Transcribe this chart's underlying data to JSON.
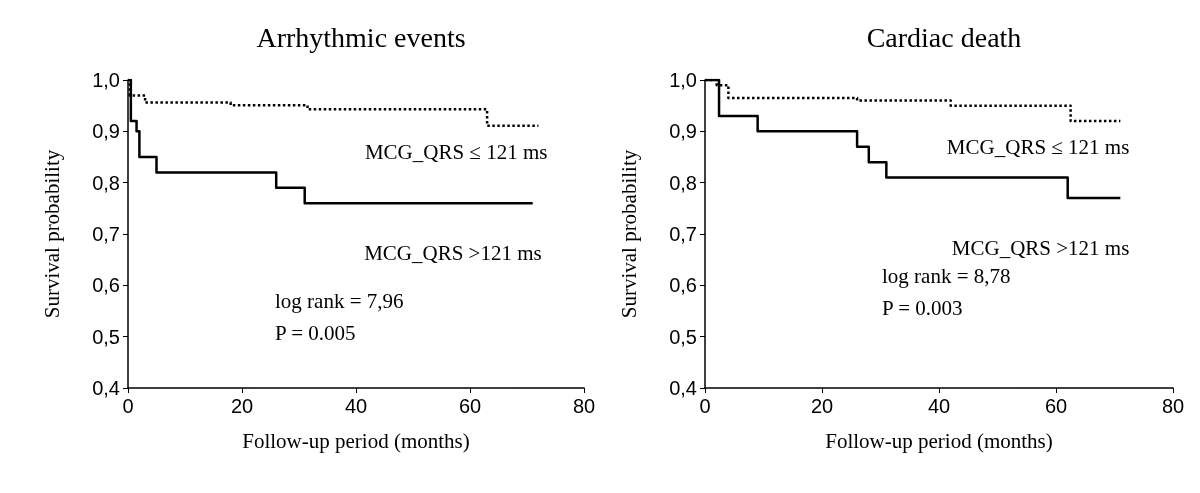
{
  "chart_data": [
    {
      "type": "step",
      "title": "Arrhythmic events",
      "xlabel": "Follow-up period (months)",
      "ylabel": "Survival probability",
      "xlim": [
        0,
        80
      ],
      "xticks": [
        0,
        20,
        40,
        60,
        80
      ],
      "ylim": [
        0.4,
        1.0
      ],
      "yticks": [
        {
          "value": 0.4,
          "label": "0,4"
        },
        {
          "value": 0.5,
          "label": "0,5"
        },
        {
          "value": 0.6,
          "label": "0,6"
        },
        {
          "value": 0.7,
          "label": "0,7"
        },
        {
          "value": 0.8,
          "label": "0,8"
        },
        {
          "value": 0.9,
          "label": "0,9"
        },
        {
          "value": 1.0,
          "label": "1,0"
        }
      ],
      "grid": false,
      "legend": false,
      "marker": "none",
      "series": [
        {
          "name": "MCG_QRS ≤ 121 ms",
          "color": "#000000",
          "line_style": "dotted",
          "x": [
            0,
            0.3,
            3,
            18,
            31.5,
            63,
            72
          ],
          "values": [
            1.0,
            0.97,
            0.956,
            0.951,
            0.943,
            0.911,
            0.911
          ]
        },
        {
          "name": "MCG_QRS >121 ms",
          "color": "#000000",
          "line_style": "solid",
          "x": [
            0,
            0.5,
            1.5,
            2,
            5,
            26,
            31,
            71
          ],
          "values": [
            1.0,
            0.92,
            0.9,
            0.85,
            0.82,
            0.79,
            0.76,
            0.76
          ]
        }
      ],
      "annotations": [
        "log rank = 7,96",
        "P = 0.005"
      ]
    },
    {
      "type": "step",
      "title": "Cardiac death",
      "xlabel": "Follow-up period (months)",
      "ylabel": "Survival probability",
      "xlim": [
        0,
        80
      ],
      "xticks": [
        0,
        20,
        40,
        60,
        80
      ],
      "ylim": [
        0.4,
        1.0
      ],
      "yticks": [
        {
          "value": 0.4,
          "label": "0,4"
        },
        {
          "value": 0.5,
          "label": "0,5"
        },
        {
          "value": 0.6,
          "label": "0,6"
        },
        {
          "value": 0.7,
          "label": "0,7"
        },
        {
          "value": 0.8,
          "label": "0,8"
        },
        {
          "value": 0.9,
          "label": "0,9"
        },
        {
          "value": 1.0,
          "label": "1,0"
        }
      ],
      "grid": false,
      "legend": false,
      "marker": "none",
      "series": [
        {
          "name": "MCG_QRS ≤ 121 ms",
          "color": "#000000",
          "line_style": "dotted",
          "x": [
            0,
            2,
            4,
            26,
            42,
            62.5,
            71
          ],
          "values": [
            1.0,
            0.99,
            0.965,
            0.96,
            0.95,
            0.92,
            0.92
          ]
        },
        {
          "name": "MCG_QRS >121 ms",
          "color": "#000000",
          "line_style": "solid",
          "x": [
            0,
            2.4,
            9,
            26,
            28,
            31,
            62,
            71
          ],
          "values": [
            1.0,
            0.93,
            0.9,
            0.87,
            0.84,
            0.81,
            0.77,
            0.77
          ]
        }
      ],
      "annotations": [
        "log rank = 8,78",
        "P = 0.003"
      ]
    }
  ]
}
